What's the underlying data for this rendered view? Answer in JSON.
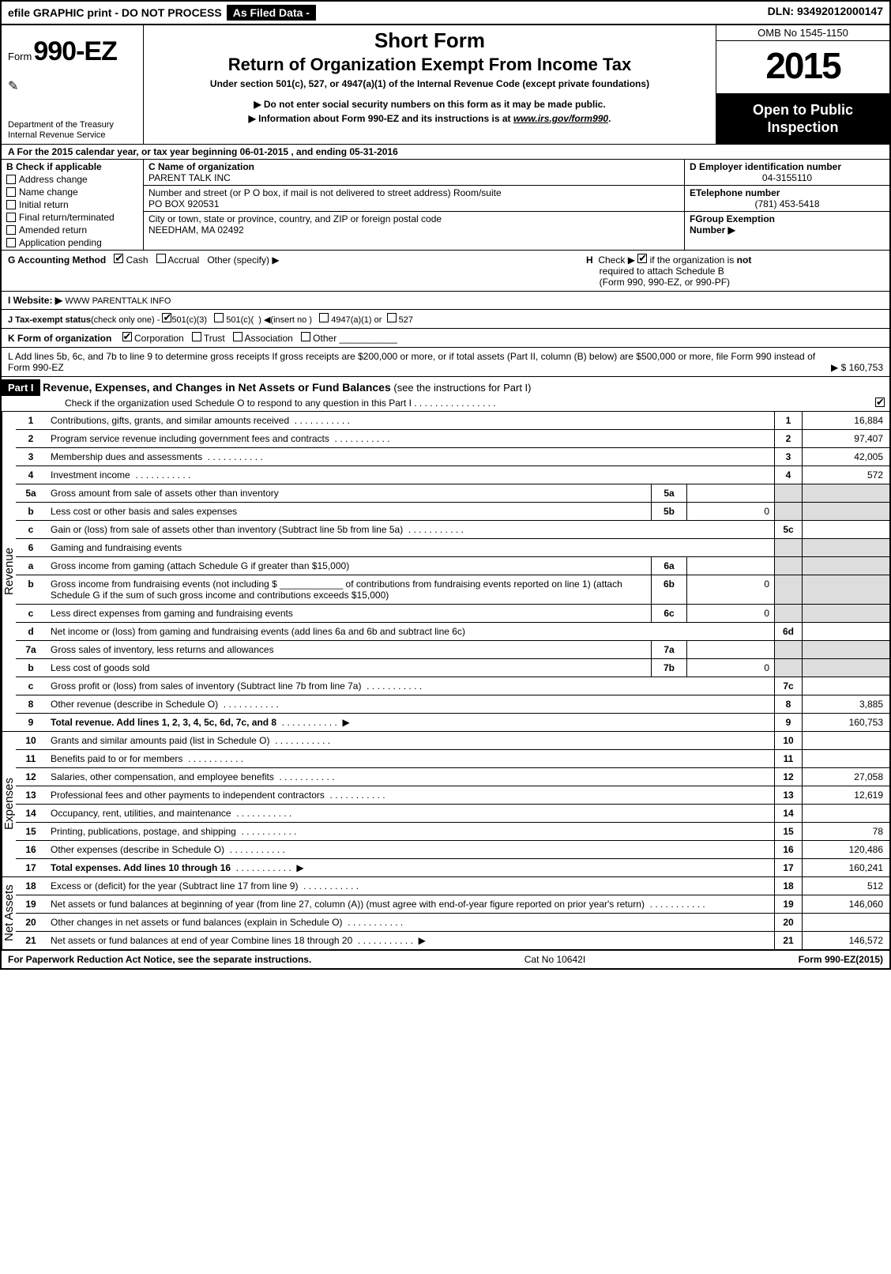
{
  "topbar": {
    "efile": "efile GRAPHIC print - DO NOT PROCESS",
    "asfiled": "As Filed Data -",
    "dln": "DLN: 93492012000147"
  },
  "header": {
    "form_prefix": "Form",
    "form_no": "990-EZ",
    "dept": "Department of the Treasury\nInternal Revenue Service",
    "short": "Short Form",
    "title": "Return of Organization Exempt From Income Tax",
    "under": "Under section 501(c), 527, or 4947(a)(1) of the Internal Revenue Code (except private foundations)",
    "instr1": "▶ Do not enter social security numbers on this form as it may be made public.",
    "instr2_pre": "▶ Information about Form 990-EZ and its instructions is at ",
    "instr2_link": "www.irs.gov/form990",
    "instr2_post": ".",
    "omb": "OMB No 1545-1150",
    "year": "2015",
    "open": "Open to Public\nInspection"
  },
  "row_a": "A  For the 2015 calendar year, or tax year beginning 06-01-2015              , and ending 05-31-2016",
  "col_b": {
    "hdr": "B  Check if applicable",
    "items": [
      "Address change",
      "Name change",
      "Initial return",
      "Final return/terminated",
      "Amended return",
      "Application pending"
    ]
  },
  "col_c": {
    "name_lbl": "C Name of organization",
    "name_val": "PARENT TALK INC",
    "street_lbl": "Number and street (or P O box, if mail is not delivered to street address) Room/suite",
    "street_val": "PO BOX 920531",
    "city_lbl": "City or town, state or province, country, and ZIP or foreign postal code",
    "city_val": "NEEDHAM, MA 02492"
  },
  "col_def": {
    "d_lbl": "D Employer identification number",
    "d_val": "04-3155110",
    "e_lbl": "ETelephone number",
    "e_val": "(781) 453-5418",
    "f_lbl": "FGroup Exemption\nNumber   ▶"
  },
  "g_h": {
    "g_lbl": "G Accounting Method",
    "g_cash": "Cash",
    "g_accrual": "Accrual",
    "g_other": "Other (specify) ▶",
    "h_text": "H   Check ▶        if the organization is not\n     required to attach Schedule B\n     (Form 990, 990-EZ, or 990-PF)"
  },
  "row_i": {
    "lbl": "I Website: ▶",
    "val": "WWW PARENTTALK INFO"
  },
  "row_j": "J Tax-exempt status(check only one) -      501(c)(3)        501(c)(  )  ◀(insert no )      4947(a)(1) or      527",
  "row_k": {
    "lbl": "K Form of organization",
    "corp": "Corporation",
    "trust": "Trust",
    "assoc": "Association",
    "other": "Other"
  },
  "row_l": {
    "text": "L Add lines 5b, 6c, and 7b to line 9 to determine gross receipts  If gross receipts are $200,000 or more, or if total assets (Part II, column (B) below) are $500,000 or more, file Form 990 instead of Form 990-EZ",
    "val": "▶ $ 160,753"
  },
  "part1": {
    "hdr": "Part I",
    "title": "Revenue, Expenses, and Changes in Net Assets or Fund Balances",
    "note": " (see the instructions for Part I)",
    "sub": "Check if the organization used Schedule O to respond to any question in this Part I  . . . . . . . . . . . . . . . ."
  },
  "sections": {
    "revenue": "Revenue",
    "expenses": "Expenses",
    "netassets": "Net Assets"
  },
  "lines": [
    {
      "n": "1",
      "d": "Contributions, gifts, grants, and similar amounts received",
      "box": "1",
      "v": "16,884",
      "dots": true
    },
    {
      "n": "2",
      "d": "Program service revenue including government fees and contracts",
      "box": "2",
      "v": "97,407",
      "dots": true
    },
    {
      "n": "3",
      "d": "Membership dues and assessments",
      "box": "3",
      "v": "42,005",
      "dots": true
    },
    {
      "n": "4",
      "d": "Investment income",
      "box": "4",
      "v": "572",
      "dots": true
    },
    {
      "n": "5a",
      "d": "Gross amount from sale of assets other than inventory",
      "ib": "5a",
      "iv": ""
    },
    {
      "n": "b",
      "d": "Less  cost or other basis and sales expenses",
      "ib": "5b",
      "iv": "0"
    },
    {
      "n": "c",
      "d": "Gain or (loss) from sale of assets other than inventory (Subtract line 5b from line 5a)",
      "box": "5c",
      "v": "",
      "dots": true
    },
    {
      "n": "6",
      "d": "Gaming and fundraising events",
      "gray": true
    },
    {
      "n": "a",
      "d": "Gross income from gaming (attach Schedule G if greater than $15,000)",
      "ib": "6a",
      "iv": "",
      "gray": true
    },
    {
      "n": "b",
      "d": "Gross income from fundraising events (not including $ ____________ of contributions from fundraising events reported on line 1) (attach Schedule G if the sum of such gross income and contributions exceeds $15,000)",
      "ib": "6b",
      "iv": "0",
      "gray": true
    },
    {
      "n": "c",
      "d": "Less  direct expenses from gaming and fundraising events",
      "ib": "6c",
      "iv": "0",
      "gray": true
    },
    {
      "n": "d",
      "d": "Net income or (loss) from gaming and fundraising events (add lines 6a and 6b and subtract line 6c)",
      "box": "6d",
      "v": ""
    },
    {
      "n": "7a",
      "d": "Gross sales of inventory, less returns and allowances",
      "ib": "7a",
      "iv": ""
    },
    {
      "n": "b",
      "d": "Less  cost of goods sold",
      "ib": "7b",
      "iv": "0"
    },
    {
      "n": "c",
      "d": "Gross profit or (loss) from sales of inventory (Subtract line 7b from line 7a)",
      "box": "7c",
      "v": "",
      "dots": true
    },
    {
      "n": "8",
      "d": "Other revenue (describe in Schedule O)",
      "box": "8",
      "v": "3,885",
      "dots": true
    },
    {
      "n": "9",
      "d": "Total revenue. Add lines 1, 2, 3, 4, 5c, 6d, 7c, and 8",
      "box": "9",
      "v": "160,753",
      "bold": true,
      "arrow": true,
      "dots": true
    }
  ],
  "exp_lines": [
    {
      "n": "10",
      "d": "Grants and similar amounts paid (list in Schedule O)",
      "box": "10",
      "v": "",
      "dots": true
    },
    {
      "n": "11",
      "d": "Benefits paid to or for members",
      "box": "11",
      "v": "",
      "dots": true
    },
    {
      "n": "12",
      "d": "Salaries, other compensation, and employee benefits",
      "box": "12",
      "v": "27,058",
      "dots": true
    },
    {
      "n": "13",
      "d": "Professional fees and other payments to independent contractors",
      "box": "13",
      "v": "12,619",
      "dots": true
    },
    {
      "n": "14",
      "d": "Occupancy, rent, utilities, and maintenance",
      "box": "14",
      "v": "",
      "dots": true
    },
    {
      "n": "15",
      "d": "Printing, publications, postage, and shipping",
      "box": "15",
      "v": "78",
      "dots": true
    },
    {
      "n": "16",
      "d": "Other expenses (describe in Schedule O)",
      "box": "16",
      "v": "120,486",
      "dots": true
    },
    {
      "n": "17",
      "d": "Total expenses. Add lines 10 through 16",
      "box": "17",
      "v": "160,241",
      "bold": true,
      "arrow": true,
      "dots": true
    }
  ],
  "na_lines": [
    {
      "n": "18",
      "d": "Excess or (deficit) for the year (Subtract line 17 from line 9)",
      "box": "18",
      "v": "512",
      "dots": true
    },
    {
      "n": "19",
      "d": "Net assets or fund balances at beginning of year (from line 27, column (A)) (must agree with end-of-year figure reported on prior year's return)",
      "box": "19",
      "v": "146,060",
      "dots": true
    },
    {
      "n": "20",
      "d": "Other changes in net assets or fund balances (explain in Schedule O)",
      "box": "20",
      "v": "",
      "dots": true
    },
    {
      "n": "21",
      "d": "Net assets or fund balances at end of year  Combine lines 18 through 20",
      "box": "21",
      "v": "146,572",
      "arrow": true,
      "dots": true
    }
  ],
  "footer": {
    "left": "For Paperwork Reduction Act Notice, see the separate instructions.",
    "mid": "Cat No 10642I",
    "right": "Form 990-EZ (2015)"
  }
}
